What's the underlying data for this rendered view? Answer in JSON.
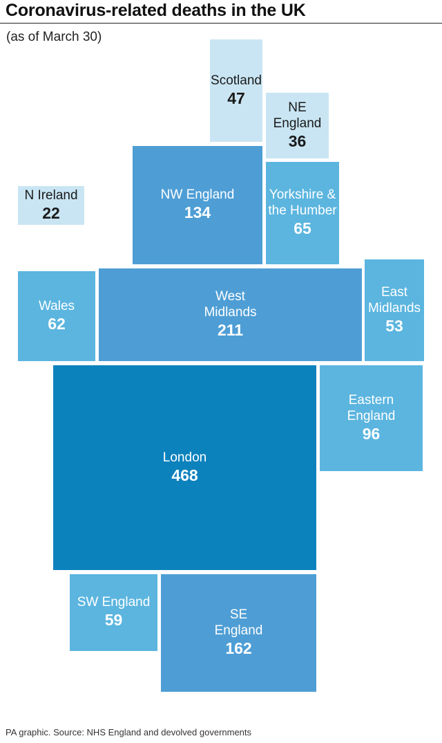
{
  "title": "Coronavirus-related deaths in the UK",
  "subtitle": "(as of March 30)",
  "source": "PA graphic. Source: NHS England and devolved governments",
  "chart_data": {
    "type": "treemap",
    "title": "Coronavirus-related deaths in the UK",
    "subtitle": "(as of March 30)",
    "regions": [
      {
        "name": "Scotland",
        "label_lines": [
          "Scotland"
        ],
        "value": 47,
        "color": "#c9e5f3"
      },
      {
        "name": "NE England",
        "label_lines": [
          "NE",
          "England"
        ],
        "value": 36,
        "color": "#c9e5f3"
      },
      {
        "name": "N Ireland",
        "label_lines": [
          "N Ireland"
        ],
        "value": 22,
        "color": "#c9e5f3"
      },
      {
        "name": "NW England",
        "label_lines": [
          "NW England"
        ],
        "value": 134,
        "color": "#4e9ed5"
      },
      {
        "name": "Yorkshire & the Humber",
        "label_lines": [
          "Yorkshire &",
          "the Humber"
        ],
        "value": 65,
        "color": "#5bb5df"
      },
      {
        "name": "Wales",
        "label_lines": [
          "Wales"
        ],
        "value": 62,
        "color": "#5bb5df"
      },
      {
        "name": "West Midlands",
        "label_lines": [
          "West",
          "Midlands"
        ],
        "value": 211,
        "color": "#4e9ed5"
      },
      {
        "name": "East Midlands",
        "label_lines": [
          "East",
          "Midlands"
        ],
        "value": 53,
        "color": "#5bb5df"
      },
      {
        "name": "London",
        "label_lines": [
          "London"
        ],
        "value": 468,
        "color": "#0c82bd"
      },
      {
        "name": "Eastern England",
        "label_lines": [
          "Eastern",
          "England"
        ],
        "value": 96,
        "color": "#5bb5df"
      },
      {
        "name": "SW England",
        "label_lines": [
          "SW England"
        ],
        "value": 59,
        "color": "#5bb5df"
      },
      {
        "name": "SE England",
        "label_lines": [
          "SE",
          "England"
        ],
        "value": 162,
        "color": "#4e9ed5"
      }
    ]
  }
}
